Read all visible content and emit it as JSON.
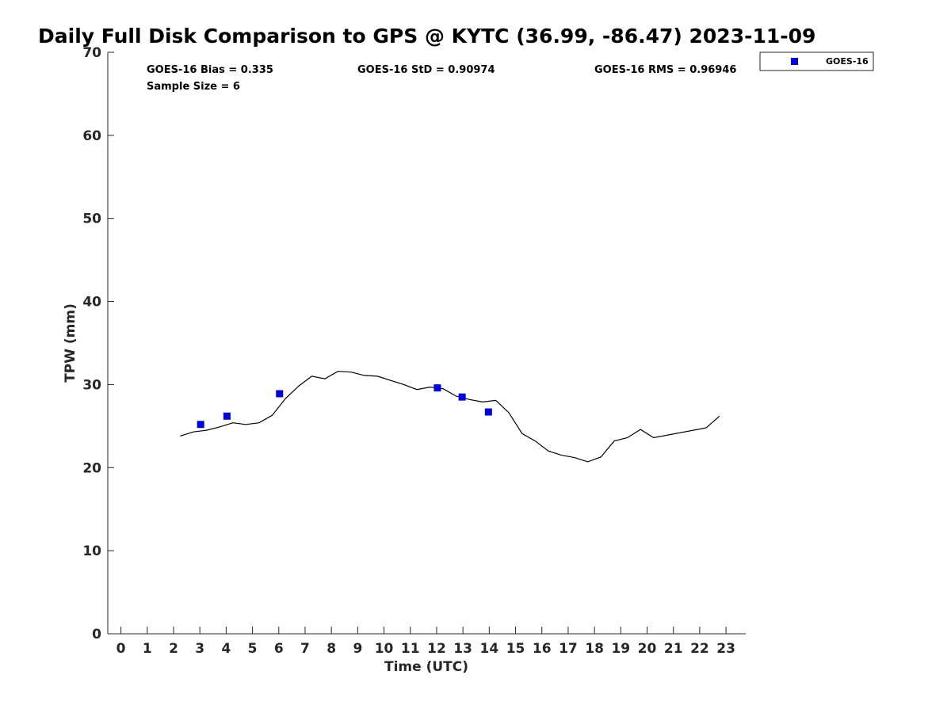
{
  "chart_data": {
    "type": "scatter",
    "title": "Daily Full Disk Comparison to GPS @ KYTC (36.99, -86.47) 2023-11-09",
    "xlabel": "Time (UTC)",
    "ylabel": "TPW (mm)",
    "xlim": [
      -0.5,
      23.75
    ],
    "ylim": [
      0,
      70
    ],
    "x_ticks": [
      0,
      1,
      2,
      3,
      4,
      5,
      6,
      7,
      8,
      9,
      10,
      11,
      12,
      13,
      14,
      15,
      16,
      17,
      18,
      19,
      20,
      21,
      22,
      23
    ],
    "x_tick_labels": [
      "0",
      "1",
      "2",
      "3",
      "4",
      "5",
      "6",
      "7",
      "8",
      "9",
      "10",
      "11",
      "12",
      "13",
      "14",
      "15",
      "16",
      "17",
      "18",
      "19",
      "20",
      "21",
      "22",
      "23"
    ],
    "y_ticks": [
      0,
      10,
      20,
      30,
      40,
      50,
      60,
      70
    ],
    "y_tick_labels": [
      "0",
      "10",
      "20",
      "30",
      "40",
      "50",
      "60",
      "70"
    ],
    "grid": false,
    "legend_position": "top-right",
    "stats": {
      "bias": "GOES-16 Bias = 0.335",
      "std": "GOES-16 StD = 0.90974",
      "rms": "GOES-16 RMS = 0.96946",
      "sample_size": "Sample Size = 6"
    },
    "series": [
      {
        "name": "GOES-16",
        "type": "scatter",
        "color": "#0000dd",
        "x": [
          3.03,
          4.03,
          6.03,
          12.03,
          12.97,
          13.97
        ],
        "y": [
          25.2,
          26.2,
          28.9,
          29.6,
          28.5,
          26.7
        ]
      },
      {
        "type": "line",
        "color": "#000000",
        "x": [
          2.25,
          2.75,
          3.25,
          3.75,
          4.25,
          4.75,
          5.25,
          5.75,
          6.25,
          6.75,
          7.25,
          7.75,
          8.25,
          8.75,
          9.25,
          9.75,
          10.25,
          10.75,
          11.25,
          11.75,
          12.25,
          12.75,
          13.25,
          13.75,
          14.25,
          14.75,
          15.25,
          15.75,
          16.25,
          16.75,
          17.25,
          17.75,
          18.25,
          18.75,
          19.25,
          19.75,
          20.25,
          22.25,
          22.75
        ],
        "y": [
          23.8,
          24.3,
          24.5,
          24.9,
          25.4,
          25.2,
          25.4,
          26.3,
          28.3,
          29.8,
          31.0,
          30.7,
          31.6,
          31.5,
          31.1,
          31.0,
          30.5,
          30.0,
          29.4,
          29.7,
          29.5,
          28.6,
          28.2,
          27.9,
          28.1,
          26.6,
          24.1,
          23.2,
          22.0,
          21.5,
          21.2,
          20.7,
          21.3,
          23.2,
          23.6,
          24.6,
          23.6,
          24.8,
          26.2
        ]
      }
    ]
  }
}
